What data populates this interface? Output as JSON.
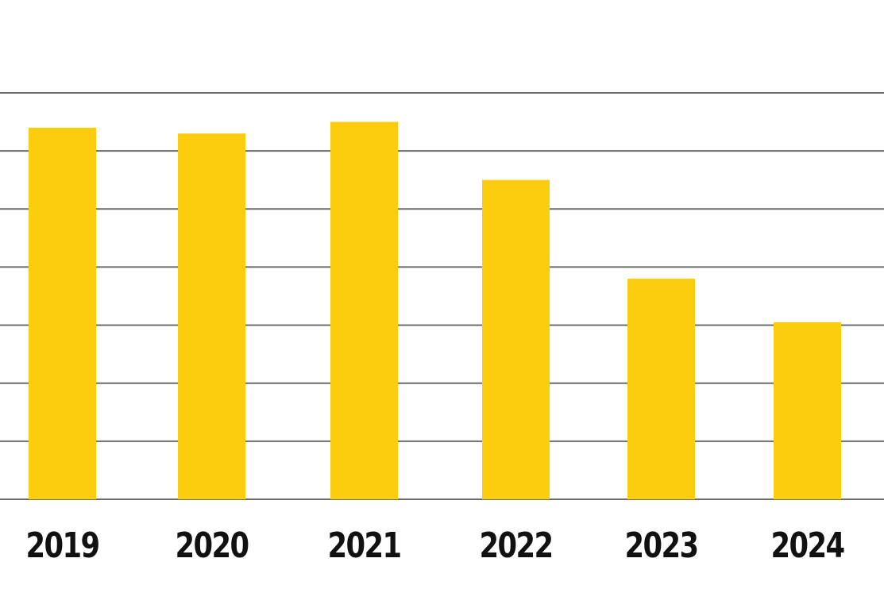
{
  "chart_data": {
    "type": "bar",
    "title": "",
    "xlabel": "",
    "ylabel": "",
    "categories": [
      "2019",
      "2020",
      "2021",
      "2022",
      "2023",
      "2024"
    ],
    "values": [
      6.4,
      6.3,
      6.5,
      5.5,
      3.8,
      3.05
    ],
    "value_units": "gridline intervals (no y-axis labels printed)",
    "ylim": [
      0,
      7
    ],
    "gridlines": 7,
    "grid": true,
    "y_tick_labels_visible": false,
    "legend": "none",
    "bar_color": "#FCCD0E",
    "grid_color": "#6b6b6b"
  }
}
